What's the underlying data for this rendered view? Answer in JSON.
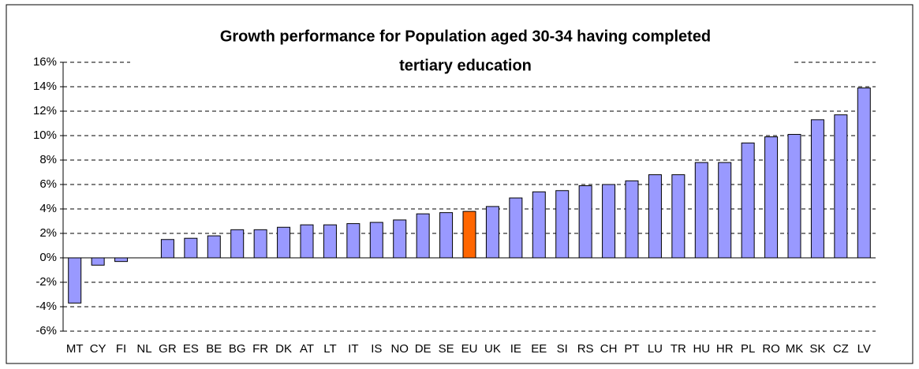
{
  "chart_data": {
    "type": "bar",
    "title": [
      "Growth performance for Population aged 30-34 having completed",
      "tertiary education"
    ],
    "categories": [
      "MT",
      "CY",
      "FI",
      "NL",
      "GR",
      "ES",
      "BE",
      "BG",
      "FR",
      "DK",
      "AT",
      "LT",
      "IT",
      "IS",
      "NO",
      "DE",
      "SE",
      "EU",
      "UK",
      "IE",
      "EE",
      "SI",
      "RS",
      "CH",
      "PT",
      "LU",
      "TR",
      "HU",
      "HR",
      "PL",
      "RO",
      "MK",
      "SK",
      "CZ",
      "LV"
    ],
    "values": [
      -3.7,
      -0.6,
      -0.3,
      0,
      1.5,
      1.6,
      1.8,
      2.3,
      2.3,
      2.5,
      2.7,
      2.7,
      2.8,
      2.9,
      3.1,
      3.6,
      3.7,
      3.8,
      4.2,
      4.9,
      5.4,
      5.5,
      5.9,
      6.0,
      6.3,
      6.8,
      6.8,
      7.8,
      7.8,
      9.4,
      9.9,
      10.1,
      11.3,
      11.7,
      13.9
    ],
    "color": "#9999ff",
    "highlight": {
      "category": "EU",
      "color": "#ff6600"
    },
    "ylim": [
      -6,
      16
    ],
    "yticks": [
      {
        "value": -6,
        "label": "-6%"
      },
      {
        "value": -4,
        "label": "-4%"
      },
      {
        "value": -2,
        "label": "-2%"
      },
      {
        "value": 0,
        "label": "0%"
      },
      {
        "value": 2,
        "label": "2%"
      },
      {
        "value": 4,
        "label": "4%"
      },
      {
        "value": 6,
        "label": "6%"
      },
      {
        "value": 8,
        "label": "8%"
      },
      {
        "value": 10,
        "label": "10%"
      },
      {
        "value": 12,
        "label": "12%"
      },
      {
        "value": 14,
        "label": "14%"
      },
      {
        "value": 16,
        "label": "16%"
      }
    ],
    "grid": true
  }
}
